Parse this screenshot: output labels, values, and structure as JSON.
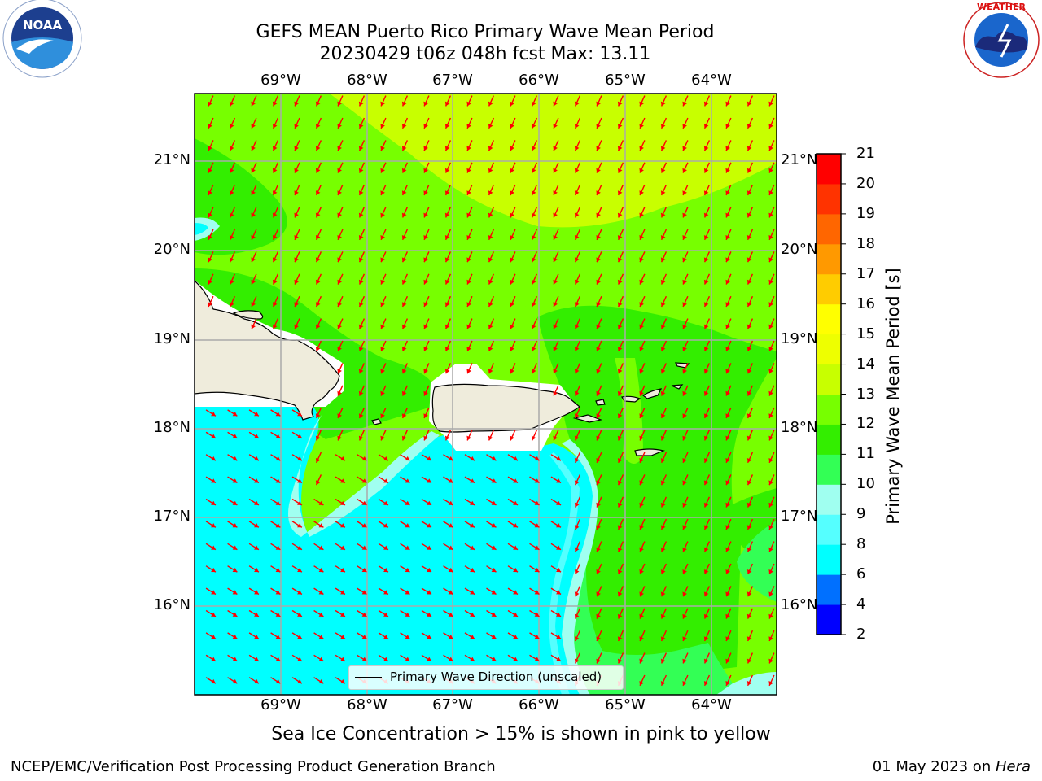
{
  "title": {
    "line1": "GEFS MEAN Puerto Rico Primary Wave Mean Period",
    "line2": "20230429 t06z 048h fcst   Max: 13.11"
  },
  "logos": {
    "left": {
      "name": "NOAA",
      "ring_text": "NATIONAL OCEANIC AND ATMOSPHERIC ADMINISTRATION · U.S. DEPARTMENT OF COMMERCE"
    },
    "right": {
      "ring_text": "NATIONAL WEATHER SERVICE"
    }
  },
  "map": {
    "lon_labels": [
      "69°W",
      "68°W",
      "67°W",
      "66°W",
      "65°W",
      "64°W"
    ],
    "lat_labels": [
      "21°N",
      "20°N",
      "19°N",
      "18°N",
      "17°N",
      "16°N"
    ],
    "legend_label": "Primary Wave Direction (unscaled)",
    "field": "Primary wave mean period",
    "arrow_color": "#ff0000",
    "land_color": "#efecdc"
  },
  "colorbar": {
    "label": "Primary Wave Mean Period [s]",
    "ticks": [
      "2",
      "4",
      "6",
      "8",
      "9",
      "10",
      "11",
      "12",
      "13",
      "14",
      "15",
      "16",
      "17",
      "18",
      "19",
      "20",
      "21"
    ],
    "colors": [
      "#0000ff",
      "#0070ff",
      "#00ffff",
      "#55ffff",
      "#a0fff0",
      "#33ff55",
      "#33ee00",
      "#77ff00",
      "#c8ff00",
      "#eeff00",
      "#ffff00",
      "#ffcc00",
      "#ff9900",
      "#ff6600",
      "#ff3300",
      "#ff0000"
    ]
  },
  "subtitle": "Sea Ice Concentration > 15% is shown in pink to yellow",
  "footer": {
    "left": "NCEP/EMC/Verification Post Processing Product Generation Branch",
    "right_date": "01 May 2023 on ",
    "right_machine": "Hera"
  }
}
